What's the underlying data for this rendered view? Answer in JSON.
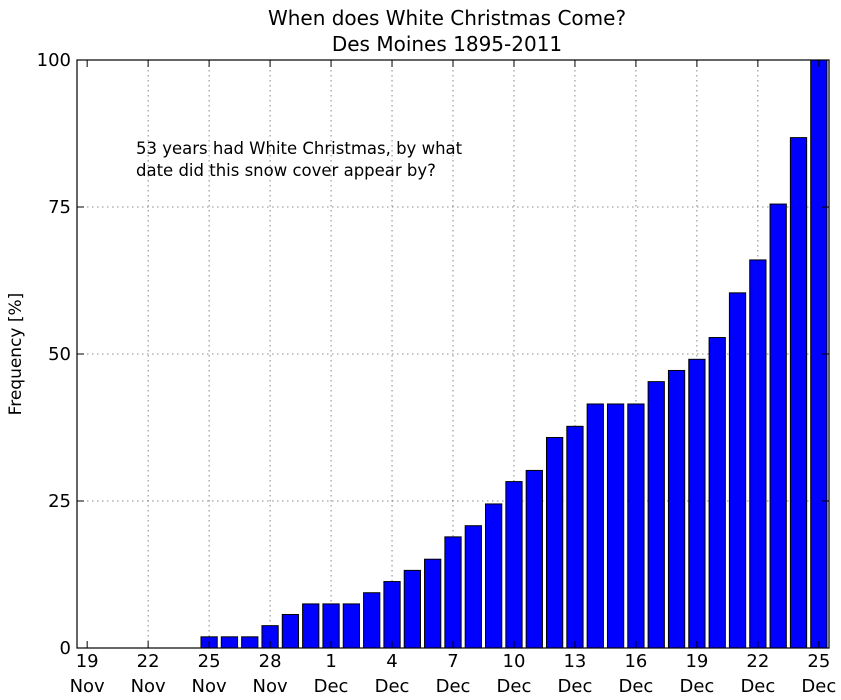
{
  "chart_data": {
    "type": "bar",
    "title": "When does White Christmas Come?",
    "subtitle": "Des Moines 1895-2011",
    "ylabel": "Frequency [%]",
    "xlabel": "",
    "ylim": [
      0,
      100
    ],
    "yticks": [
      0,
      25,
      50,
      75,
      100
    ],
    "grid": true,
    "annotation": [
      "53 years had White Christmas, by what",
      "date did this snow cover appear by?"
    ],
    "xticks": [
      {
        "day": "19",
        "month": "Nov"
      },
      {
        "day": "22",
        "month": "Nov"
      },
      {
        "day": "25",
        "month": "Nov"
      },
      {
        "day": "28",
        "month": "Nov"
      },
      {
        "day": "1",
        "month": "Dec"
      },
      {
        "day": "4",
        "month": "Dec"
      },
      {
        "day": "7",
        "month": "Dec"
      },
      {
        "day": "10",
        "month": "Dec"
      },
      {
        "day": "13",
        "month": "Dec"
      },
      {
        "day": "16",
        "month": "Dec"
      },
      {
        "day": "19",
        "month": "Dec"
      },
      {
        "day": "22",
        "month": "Dec"
      },
      {
        "day": "25",
        "month": "Dec"
      }
    ],
    "categories": [
      "Nov 19",
      "Nov 20",
      "Nov 21",
      "Nov 22",
      "Nov 23",
      "Nov 24",
      "Nov 25",
      "Nov 26",
      "Nov 27",
      "Nov 28",
      "Nov 29",
      "Nov 30",
      "Dec 1",
      "Dec 2",
      "Dec 3",
      "Dec 4",
      "Dec 5",
      "Dec 6",
      "Dec 7",
      "Dec 8",
      "Dec 9",
      "Dec 10",
      "Dec 11",
      "Dec 12",
      "Dec 13",
      "Dec 14",
      "Dec 15",
      "Dec 16",
      "Dec 17",
      "Dec 18",
      "Dec 19",
      "Dec 20",
      "Dec 21",
      "Dec 22",
      "Dec 23",
      "Dec 24",
      "Dec 25"
    ],
    "values": [
      0,
      0,
      0,
      0,
      0,
      0,
      1.9,
      1.9,
      1.9,
      3.8,
      5.7,
      7.5,
      7.5,
      7.5,
      9.4,
      11.3,
      13.2,
      15.1,
      18.9,
      20.8,
      24.5,
      28.3,
      30.2,
      35.8,
      37.7,
      41.5,
      41.5,
      41.5,
      45.3,
      47.2,
      49.1,
      52.8,
      60.4,
      66.0,
      75.5,
      86.8,
      100
    ],
    "bar_color": "#0000ff"
  }
}
